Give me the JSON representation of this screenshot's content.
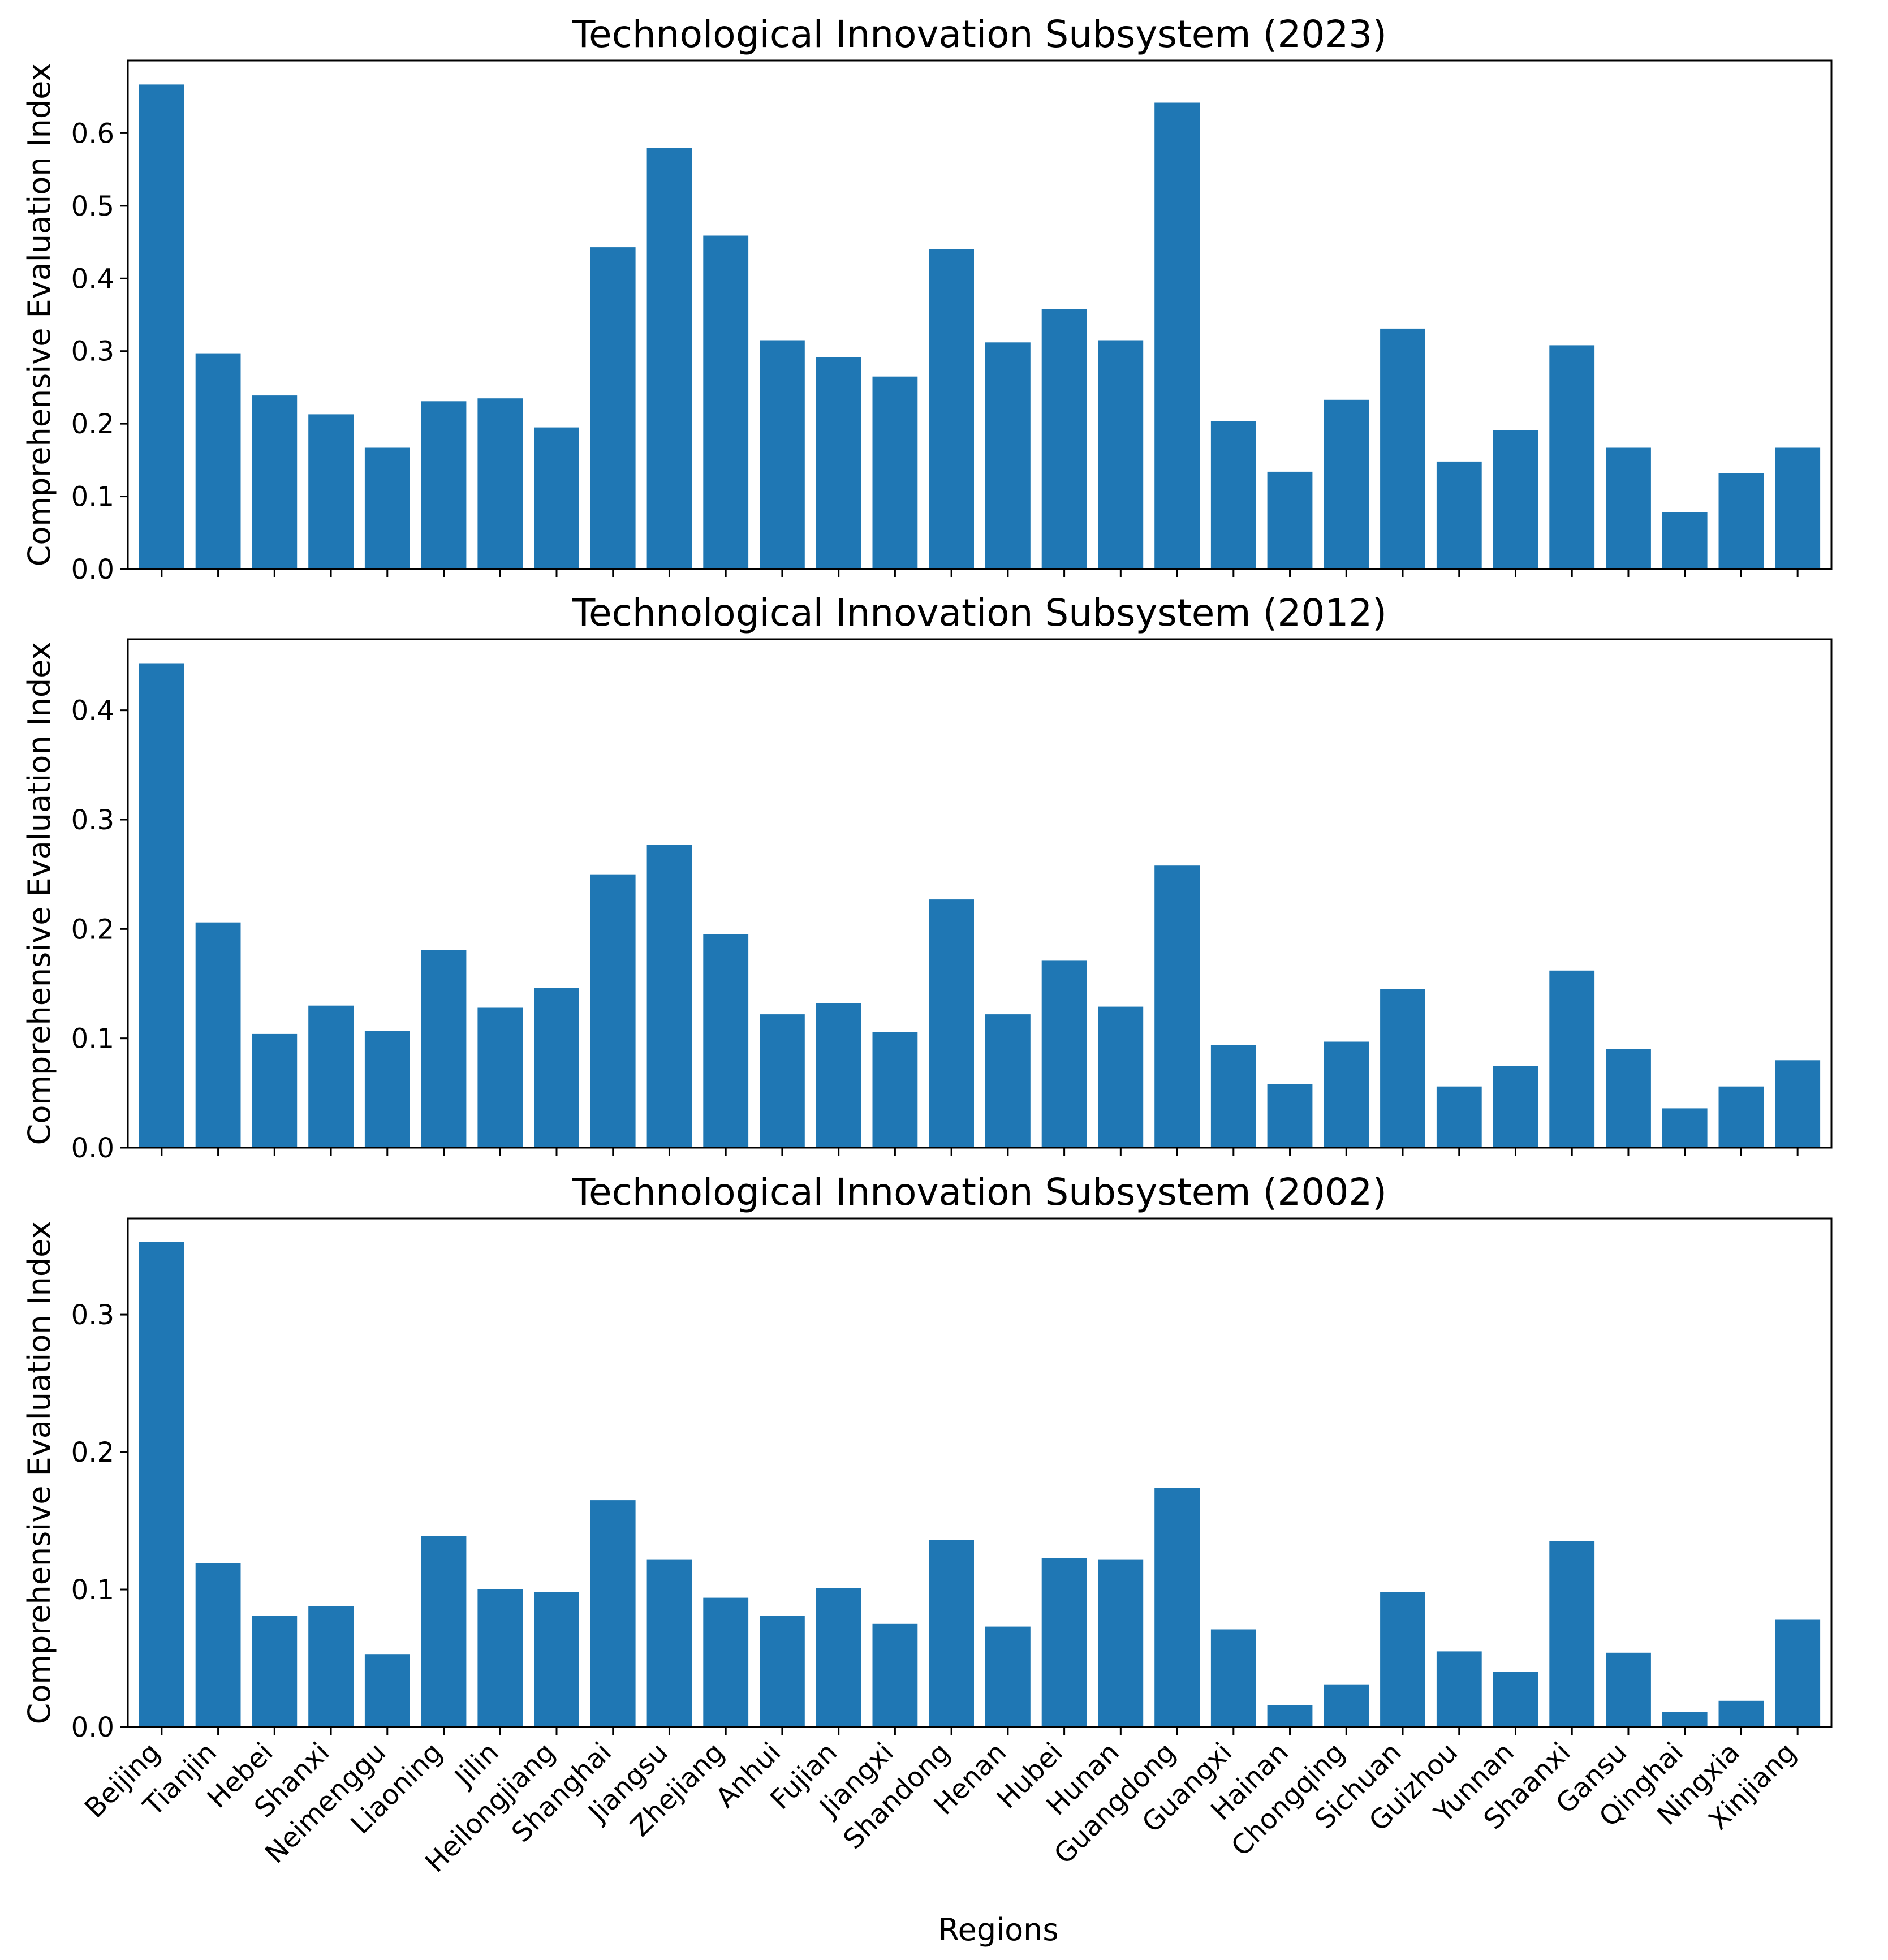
{
  "colors": {
    "bar": "#1f77b4",
    "axis": "#000000",
    "background": "#ffffff"
  },
  "chart_data": [
    {
      "type": "bar",
      "title": "Technological Innovation Subsystem (2023)",
      "xlabel": "",
      "ylabel": "Comprehensive Evaluation Index",
      "ylim": [
        0,
        0.7
      ],
      "yticks": [
        "0.0",
        "0.1",
        "0.2",
        "0.3",
        "0.4",
        "0.5",
        "0.6"
      ],
      "categories": [
        "Beijing",
        "Tianjin",
        "Hebei",
        "Shanxi",
        "Neimenggu",
        "Liaoning",
        "Jilin",
        "Heilongjiang",
        "Shanghai",
        "Jiangsu",
        "Zhejiang",
        "Anhui",
        "Fujian",
        "Jiangxi",
        "Shandong",
        "Henan",
        "Hubei",
        "Hunan",
        "Guangdong",
        "Guangxi",
        "Hainan",
        "Chongqing",
        "Sichuan",
        "Guizhou",
        "Yunnan",
        "Shaanxi",
        "Gansu",
        "Qinghai",
        "Ningxia",
        "Xinjiang"
      ],
      "values": [
        0.667,
        0.297,
        0.239,
        0.213,
        0.167,
        0.231,
        0.235,
        0.195,
        0.443,
        0.58,
        0.459,
        0.315,
        0.292,
        0.265,
        0.44,
        0.312,
        0.358,
        0.315,
        0.642,
        0.204,
        0.134,
        0.233,
        0.331,
        0.148,
        0.191,
        0.308,
        0.167,
        0.078,
        0.132,
        0.167
      ]
    },
    {
      "type": "bar",
      "title": "Technological Innovation Subsystem (2012)",
      "xlabel": "",
      "ylabel": "Comprehensive Evaluation Index",
      "ylim": [
        0,
        0.465
      ],
      "yticks": [
        "0.0",
        "0.1",
        "0.2",
        "0.3",
        "0.4"
      ],
      "categories": [
        "Beijing",
        "Tianjin",
        "Hebei",
        "Shanxi",
        "Neimenggu",
        "Liaoning",
        "Jilin",
        "Heilongjiang",
        "Shanghai",
        "Jiangsu",
        "Zhejiang",
        "Anhui",
        "Fujian",
        "Jiangxi",
        "Shandong",
        "Henan",
        "Hubei",
        "Hunan",
        "Guangdong",
        "Guangxi",
        "Hainan",
        "Chongqing",
        "Sichuan",
        "Guizhou",
        "Yunnan",
        "Shaanxi",
        "Gansu",
        "Qinghai",
        "Ningxia",
        "Xinjiang"
      ],
      "values": [
        0.443,
        0.206,
        0.104,
        0.13,
        0.107,
        0.181,
        0.128,
        0.146,
        0.25,
        0.277,
        0.195,
        0.122,
        0.132,
        0.106,
        0.227,
        0.122,
        0.171,
        0.129,
        0.258,
        0.094,
        0.058,
        0.097,
        0.145,
        0.056,
        0.075,
        0.162,
        0.09,
        0.036,
        0.056,
        0.08
      ]
    },
    {
      "type": "bar",
      "title": "Technological Innovation Subsystem (2002)",
      "xlabel": "Regions",
      "ylabel": "Comprehensive Evaluation Index",
      "ylim": [
        0,
        0.37
      ],
      "yticks": [
        "0.0",
        "0.1",
        "0.2",
        "0.3"
      ],
      "categories": [
        "Beijing",
        "Tianjin",
        "Hebei",
        "Shanxi",
        "Neimenggu",
        "Liaoning",
        "Jilin",
        "Heilongjiang",
        "Shanghai",
        "Jiangsu",
        "Zhejiang",
        "Anhui",
        "Fujian",
        "Jiangxi",
        "Shandong",
        "Henan",
        "Hubei",
        "Hunan",
        "Guangdong",
        "Guangxi",
        "Hainan",
        "Chongqing",
        "Sichuan",
        "Guizhou",
        "Yunnan",
        "Shaanxi",
        "Gansu",
        "Qinghai",
        "Ningxia",
        "Xinjiang"
      ],
      "values": [
        0.353,
        0.119,
        0.081,
        0.088,
        0.053,
        0.139,
        0.1,
        0.098,
        0.165,
        0.122,
        0.094,
        0.081,
        0.101,
        0.075,
        0.136,
        0.073,
        0.123,
        0.122,
        0.174,
        0.071,
        0.016,
        0.031,
        0.098,
        0.055,
        0.04,
        0.135,
        0.054,
        0.011,
        0.019,
        0.078
      ]
    }
  ]
}
